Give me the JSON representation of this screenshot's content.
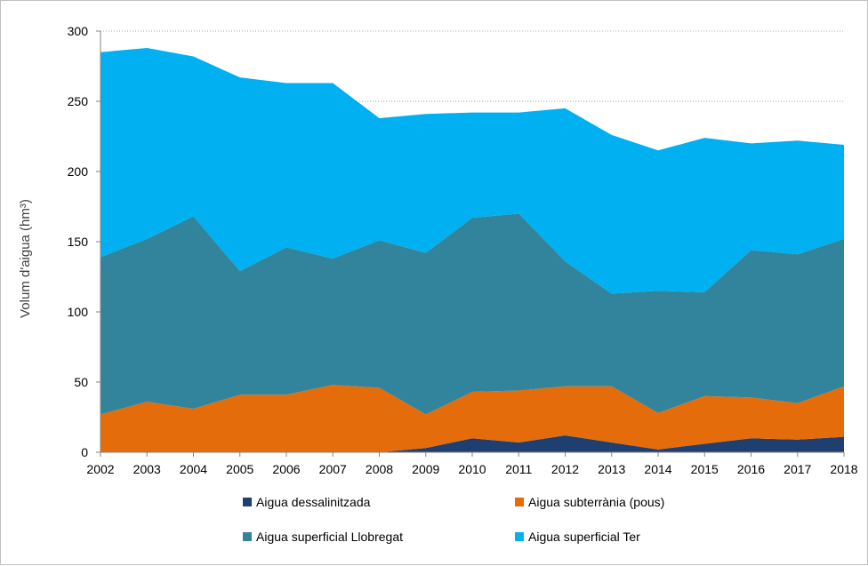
{
  "chart_data": {
    "type": "area",
    "stacked": true,
    "title": "",
    "xlabel": "",
    "ylabel": "Volum d'aigua (hm³)",
    "ylim": [
      0,
      300
    ],
    "yticks": [
      0,
      50,
      100,
      150,
      200,
      250,
      300
    ],
    "grid": "horizontal",
    "legend_position": "bottom",
    "categories": [
      "2002",
      "2003",
      "2004",
      "2005",
      "2006",
      "2007",
      "2008",
      "2009",
      "2010",
      "2011",
      "2012",
      "2013",
      "2014",
      "2015",
      "2016",
      "2017",
      "2018"
    ],
    "series": [
      {
        "name": "Aigua dessalinitzada",
        "color": "#1f3f6e",
        "values": [
          0,
          0,
          0,
          0,
          0,
          0,
          0,
          3,
          10,
          7,
          12,
          7,
          2,
          6,
          10,
          9,
          11
        ]
      },
      {
        "name": "Aigua subterrània (pous)",
        "color": "#e46c0a",
        "values": [
          27,
          36,
          31,
          41,
          41,
          48,
          46,
          24,
          33,
          37,
          35,
          40,
          26,
          34,
          29,
          26,
          36
        ]
      },
      {
        "name": "Aigua superficial Llobregat",
        "color": "#31849b",
        "values": [
          112,
          116,
          137,
          88,
          105,
          90,
          105,
          115,
          124,
          126,
          89,
          66,
          87,
          74,
          105,
          106,
          105
        ]
      },
      {
        "name": "Aigua superficial Ter",
        "color": "#00b0f0",
        "values": [
          146,
          136,
          114,
          138,
          117,
          125,
          87,
          99,
          75,
          72,
          109,
          113,
          100,
          110,
          76,
          81,
          67
        ]
      }
    ]
  }
}
